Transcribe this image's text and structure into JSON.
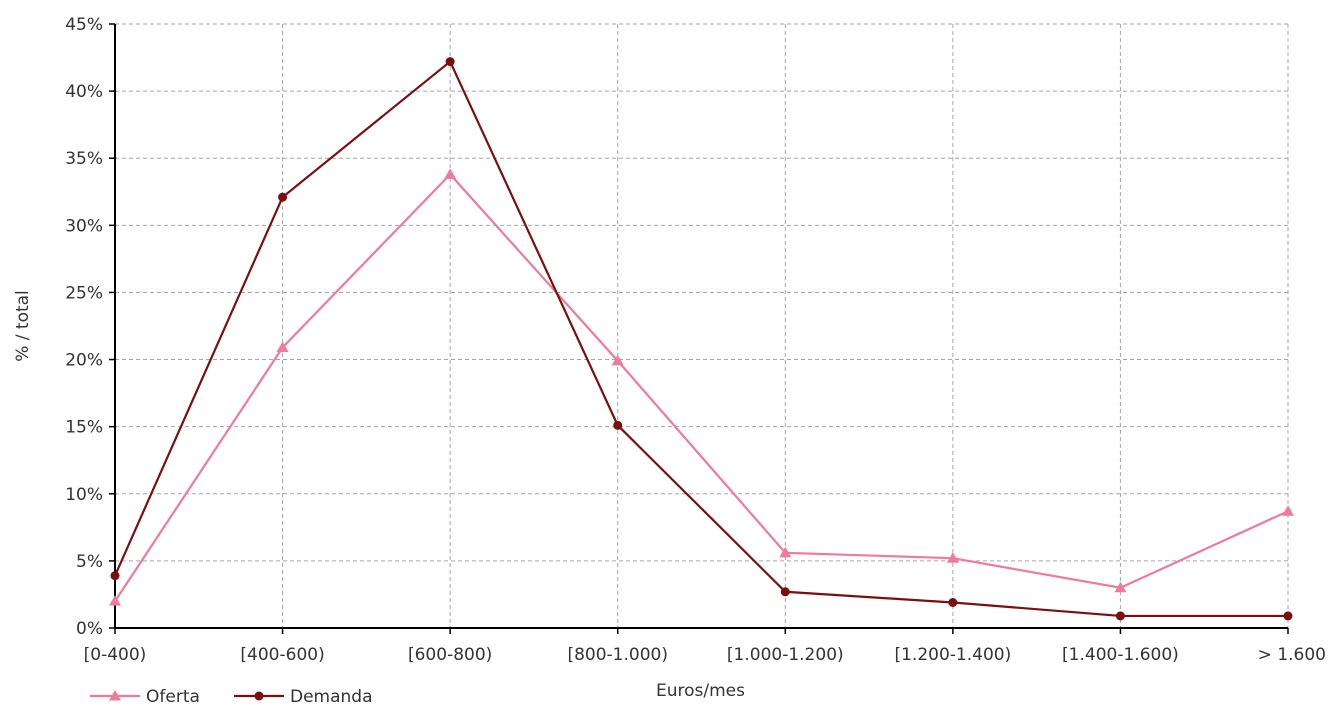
{
  "chart_data": {
    "type": "line",
    "categories": [
      "[0-400)",
      "[400-600)",
      "[600-800)",
      "[800-1.000)",
      "[1.000-1.200)",
      "[1.200-1.400)",
      "[1.400-1.600)",
      "> 1.600"
    ],
    "series": [
      {
        "name": "Oferta",
        "values": [
          2.0,
          20.9,
          33.8,
          19.9,
          5.6,
          5.2,
          3.0,
          8.7
        ],
        "color": "#f07a9a",
        "marker": "triangle"
      },
      {
        "name": "Demanda",
        "values": [
          3.9,
          32.1,
          42.2,
          15.1,
          2.7,
          1.9,
          0.9,
          0.9
        ],
        "color": "#7a0f0f",
        "marker": "circle"
      }
    ],
    "xlabel": "Euros/mes",
    "ylabel": "% / total",
    "ylim": [
      0,
      45
    ],
    "yticks": [
      0,
      5,
      10,
      15,
      20,
      25,
      30,
      35,
      40,
      45
    ],
    "ytick_suffix": "%",
    "grid": true,
    "legend_position": "bottom-left"
  }
}
